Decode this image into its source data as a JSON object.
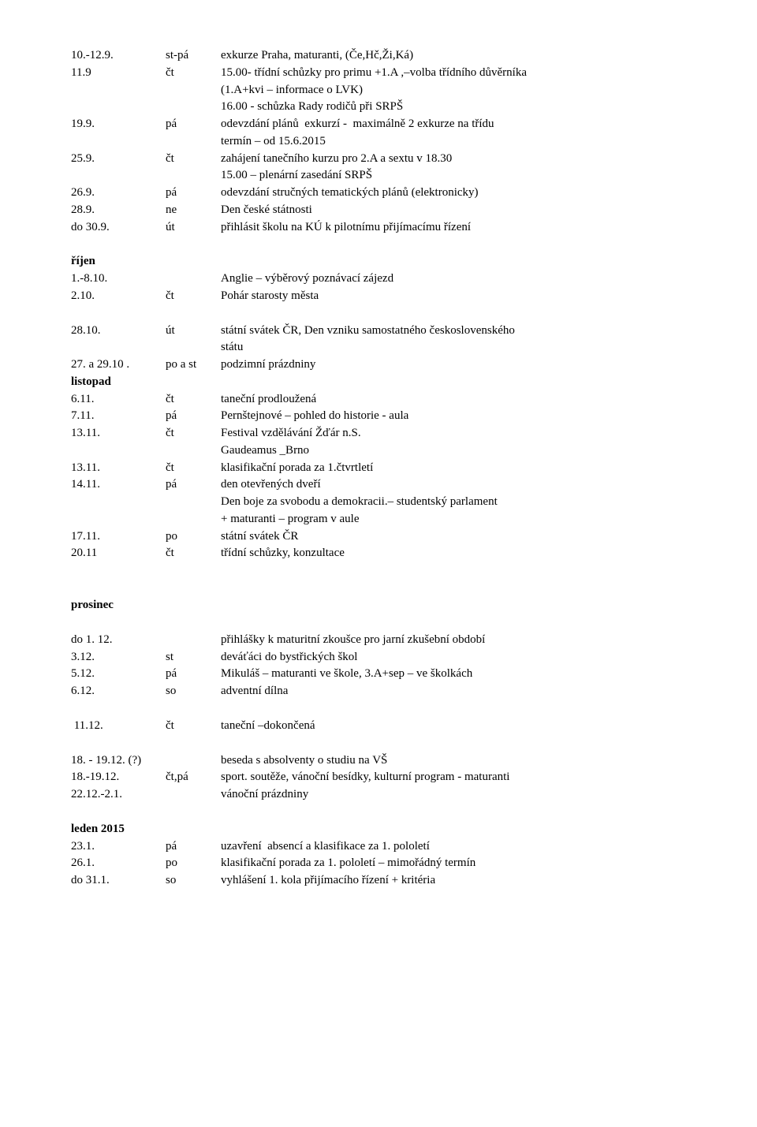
{
  "sec1": {
    "rows": [
      {
        "d": "10.-12.9.",
        "w": "st-pá",
        "t": "exkurze Praha, maturanti, (Če,Hč,Ži,Ká)"
      },
      {
        "d": "11.9",
        "w": "čt",
        "t": "15.00- třídní schůzky pro primu +1.A ,–volba třídního důvěrníka"
      },
      {
        "d": "",
        "w": "",
        "t": "(1.A+kvi – informace o LVK)"
      },
      {
        "d": "",
        "w": "",
        "t": "16.00 - schůzka Rady rodičů při SRPŠ"
      },
      {
        "d": "19.9.",
        "w": "pá",
        "t": "odevzdání plánů  exkurzí -  maximálně 2 exkurze na třídu"
      },
      {
        "d": "",
        "w": "",
        "t": "termín – od 15.6.2015"
      },
      {
        "d": "25.9.",
        "w": "čt",
        "t": "zahájení tanečního kurzu pro 2.A a sextu v 18.30"
      },
      {
        "d": "",
        "w": "",
        "t": "15.00 – plenární zasedání SRPŠ"
      },
      {
        "d": "26.9.",
        "w": "pá",
        "t": "odevzdání stručných tematických plánů (elektronicky)"
      },
      {
        "d": "28.9.",
        "w": "ne",
        "t": "Den české státnosti"
      },
      {
        "d": "do 30.9.",
        "w": "út",
        "t": "přihlásit školu na KÚ k pilotnímu přijímacímu řízení"
      }
    ]
  },
  "sec2": {
    "heading": "říjen",
    "rows": [
      {
        "d": "1.-8.10.",
        "w": "",
        "t": "Anglie – výběrový poznávací zájezd"
      },
      {
        "d": "2.10.",
        "w": "čt",
        "t": "Pohár starosty města"
      }
    ]
  },
  "sec3": {
    "rows": [
      {
        "d": "28.10.",
        "w": "út",
        "t": "státní svátek ČR, Den vzniku samostatného československého"
      },
      {
        "d": "",
        "w": "",
        "t": "státu"
      },
      {
        "d": "27. a 29.10 .",
        "w": "po a st",
        "t": "podzimní prázdniny"
      },
      {
        "d": "listopad",
        "w": "",
        "t": "",
        "bold": true
      },
      {
        "d": "6.11.",
        "w": "čt",
        "t": "taneční prodloužená"
      },
      {
        "d": "7.11.",
        "w": "pá",
        "t": "Pernštejnové – pohled do historie - aula"
      },
      {
        "d": "13.11.",
        "w": "čt",
        "t": "Festival vzdělávání Žďár n.S."
      },
      {
        "d": "",
        "w": "",
        "t": "Gaudeamus _Brno"
      },
      {
        "d": "13.11.",
        "w": "čt",
        "t": "klasifikační porada za 1.čtvrtletí"
      },
      {
        "d": "14.11.",
        "w": "pá",
        "t": "den otevřených dveří"
      },
      {
        "d": "",
        "w": "",
        "t": "Den boje za svobodu a demokracii.– studentský parlament"
      },
      {
        "d": "",
        "w": "",
        "t": "+ maturanti – program v aule"
      },
      {
        "d": "17.11.",
        "w": "po",
        "t": "státní svátek ČR"
      },
      {
        "d": "20.11",
        "w": "čt",
        "t": "třídní schůzky, konzultace"
      }
    ]
  },
  "sec4": {
    "heading": "prosinec",
    "rows": [
      {
        "d": "do 1. 12.",
        "w": "",
        "t": "přihlášky k maturitní zkoušce pro jarní zkušební období"
      },
      {
        "d": "3.12.",
        "w": "st",
        "t": "deváťáci do bystřických škol"
      },
      {
        "d": "5.12.",
        "w": "pá",
        "t": "Mikuláš – maturanti ve škole, 3.A+sep – ve školkách"
      },
      {
        "d": "6.12.",
        "w": "so",
        "t": "adventní dílna"
      }
    ]
  },
  "sec5": {
    "rows": [
      {
        "d": " 11.12.",
        "w": "čt",
        "t": "taneční –dokončená"
      }
    ]
  },
  "sec6": {
    "rows": [
      {
        "d": "18. - 19.12. (?)",
        "w": "",
        "t": "beseda s absolventy o studiu na VŠ"
      },
      {
        "d": "18.-19.12.",
        "w": "čt,pá",
        "t": "sport. soutěže, vánoční besídky, kulturní program - maturanti"
      },
      {
        "d": "22.12.-2.1.",
        "w": "",
        "t": "vánoční prázdniny"
      }
    ]
  },
  "sec7": {
    "heading": "leden 2015",
    "rows": [
      {
        "d": "23.1.",
        "w": "pá",
        "t": "uzavření  absencí a klasifikace za 1. pololetí"
      },
      {
        "d": "26.1.",
        "w": "po",
        "t": "klasifikační porada za 1. pololetí – mimořádný termín"
      },
      {
        "d": "do 31.1.",
        "w": "so",
        "t": "vyhlášení 1. kola přijímacího řízení + kritéria"
      }
    ]
  }
}
